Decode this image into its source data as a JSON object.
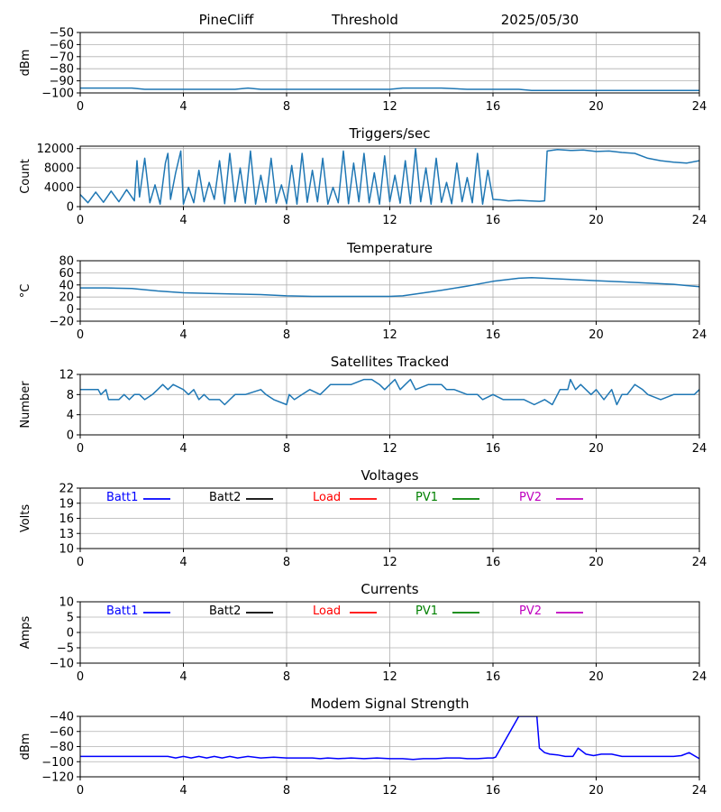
{
  "header": {
    "station": "PineCliff",
    "title": "Threshold",
    "date": "2025/05/30"
  },
  "colors": {
    "series_default": "#1f77b4",
    "batt1": "#0000ff",
    "batt2": "#000000",
    "load": "#ff0000",
    "pv1": "#008000",
    "pv2": "#bf00bf",
    "modem": "#0000ff",
    "grid": "#b0b0b0"
  },
  "chart_data": [
    {
      "id": "threshold",
      "type": "line",
      "title": "",
      "ylabel": "dBm",
      "xlim": [
        0,
        24
      ],
      "ylim": [
        -100,
        -50
      ],
      "xticks": [
        0,
        4,
        8,
        12,
        16,
        20,
        24
      ],
      "yticks": [
        -100,
        -90,
        -80,
        -70,
        -60,
        -50
      ],
      "ytick_labels": [
        "−100",
        "−90",
        "−80",
        "−70",
        "−60",
        "−50"
      ],
      "grid": true,
      "series": [
        {
          "color": "#1f77b4",
          "x": [
            0,
            1,
            2,
            2.5,
            3,
            4,
            5,
            6,
            6.5,
            7,
            8,
            9,
            10,
            11,
            12,
            12.5,
            13,
            14,
            15,
            16,
            17,
            17.5,
            18,
            19,
            20,
            21,
            22,
            23,
            24
          ],
          "y": [
            -96,
            -96,
            -96,
            -97,
            -97,
            -97,
            -97,
            -97,
            -96,
            -97,
            -97,
            -97,
            -97,
            -97,
            -97,
            -96,
            -96,
            -96,
            -97,
            -97,
            -97,
            -98,
            -98,
            -98,
            -98,
            -98,
            -98,
            -98,
            -98
          ]
        }
      ]
    },
    {
      "id": "triggers",
      "type": "line",
      "title": "Triggers/sec",
      "ylabel": "Count",
      "xlim": [
        0,
        24
      ],
      "ylim": [
        0,
        12500
      ],
      "xticks": [
        0,
        4,
        8,
        12,
        16,
        20,
        24
      ],
      "yticks": [
        0,
        4000,
        8000,
        12000
      ],
      "ytick_labels": [
        "0",
        "4000",
        "8000",
        "12000"
      ],
      "grid": true,
      "series": [
        {
          "color": "#1f77b4",
          "x": [
            0,
            0.3,
            0.6,
            0.9,
            1.2,
            1.5,
            1.8,
            2.1,
            2.2,
            2.3,
            2.5,
            2.7,
            2.9,
            3.1,
            3.3,
            3.4,
            3.5,
            3.7,
            3.9,
            4.0,
            4.2,
            4.4,
            4.6,
            4.8,
            5.0,
            5.2,
            5.4,
            5.6,
            5.8,
            6.0,
            6.2,
            6.4,
            6.6,
            6.8,
            7.0,
            7.2,
            7.4,
            7.6,
            7.8,
            8.0,
            8.2,
            8.4,
            8.6,
            8.8,
            9.0,
            9.2,
            9.4,
            9.6,
            9.8,
            10.0,
            10.2,
            10.4,
            10.6,
            10.8,
            11.0,
            11.2,
            11.4,
            11.6,
            11.8,
            12.0,
            12.2,
            12.4,
            12.6,
            12.8,
            13.0,
            13.2,
            13.4,
            13.6,
            13.8,
            14.0,
            14.2,
            14.4,
            14.6,
            14.8,
            15.0,
            15.2,
            15.4,
            15.6,
            15.8,
            16.0,
            16.3,
            16.6,
            17.0,
            17.4,
            17.8,
            18.0,
            18.1,
            18.5,
            19.0,
            19.5,
            20.0,
            20.5,
            21.0,
            21.5,
            22.0,
            22.5,
            23.0,
            23.5,
            24.0
          ],
          "y": [
            2500,
            800,
            3000,
            900,
            3200,
            1000,
            3500,
            1200,
            9500,
            2000,
            10000,
            800,
            4500,
            500,
            9000,
            11000,
            1500,
            7000,
            11500,
            500,
            4000,
            800,
            7500,
            1000,
            5000,
            1500,
            9500,
            600,
            11000,
            1000,
            8000,
            700,
            11500,
            500,
            6500,
            900,
            10000,
            700,
            4500,
            600,
            8500,
            500,
            11000,
            900,
            7500,
            1000,
            10000,
            500,
            4000,
            800,
            11500,
            600,
            9000,
            1000,
            11000,
            800,
            7000,
            500,
            10500,
            1000,
            6500,
            700,
            9500,
            600,
            12000,
            1000,
            8000,
            500,
            10000,
            900,
            5000,
            600,
            9000,
            1000,
            6000,
            800,
            11000,
            500,
            7500,
            1500,
            1400,
            1200,
            1300,
            1200,
            1100,
            1200,
            11500,
            11800,
            11600,
            11700,
            11400,
            11500,
            11200,
            11000,
            10000,
            9500,
            9200,
            9000,
            9500
          ]
        }
      ]
    },
    {
      "id": "temperature",
      "type": "line",
      "title": "Temperature",
      "ylabel": "°C",
      "xlim": [
        0,
        24
      ],
      "ylim": [
        -20,
        80
      ],
      "xticks": [
        0,
        4,
        8,
        12,
        16,
        20,
        24
      ],
      "yticks": [
        -20,
        0,
        20,
        40,
        60,
        80
      ],
      "ytick_labels": [
        "−20",
        "0",
        "20",
        "40",
        "60",
        "80"
      ],
      "grid": true,
      "series": [
        {
          "color": "#1f77b4",
          "x": [
            0,
            1,
            2,
            3,
            4,
            5,
            6,
            7,
            8,
            9,
            10,
            11,
            12,
            12.5,
            13,
            14,
            15,
            16,
            17,
            17.5,
            18,
            19,
            20,
            21,
            22,
            23,
            24
          ],
          "y": [
            35,
            35,
            34,
            30,
            27,
            26,
            25,
            24,
            22,
            21,
            21,
            21,
            21,
            22,
            25,
            31,
            38,
            46,
            51,
            52,
            51,
            49,
            47,
            45,
            43,
            41,
            37
          ]
        }
      ]
    },
    {
      "id": "satellites",
      "type": "line",
      "title": "Satellites Tracked",
      "ylabel": "Number",
      "xlim": [
        0,
        24
      ],
      "ylim": [
        0,
        12
      ],
      "xticks": [
        0,
        4,
        8,
        12,
        16,
        20,
        24
      ],
      "yticks": [
        0,
        4,
        8,
        12
      ],
      "ytick_labels": [
        "0",
        "4",
        "8",
        "12"
      ],
      "grid": true,
      "series": [
        {
          "color": "#1f77b4",
          "x": [
            0,
            0.7,
            0.8,
            1.0,
            1.1,
            1.5,
            1.7,
            1.9,
            2.1,
            2.3,
            2.5,
            2.8,
            3.0,
            3.2,
            3.4,
            3.6,
            4.0,
            4.2,
            4.4,
            4.6,
            4.8,
            5.0,
            5.4,
            5.6,
            5.8,
            6.0,
            6.2,
            6.4,
            7.0,
            7.2,
            7.5,
            8.0,
            8.1,
            8.3,
            8.6,
            8.9,
            9.3,
            9.5,
            9.7,
            9.9,
            10.2,
            10.5,
            11.0,
            11.3,
            11.6,
            11.8,
            12.0,
            12.2,
            12.4,
            12.6,
            12.8,
            13.0,
            13.5,
            14.0,
            14.2,
            14.5,
            15.0,
            15.4,
            15.6,
            16.0,
            16.4,
            16.8,
            17.2,
            17.6,
            18.0,
            18.3,
            18.6,
            18.9,
            19.0,
            19.2,
            19.4,
            19.6,
            19.8,
            20.0,
            20.3,
            20.6,
            20.8,
            21.0,
            21.2,
            21.5,
            21.8,
            22.0,
            22.5,
            23.0,
            23.5,
            23.8,
            24.0
          ],
          "y": [
            9,
            9,
            8,
            9,
            7,
            7,
            8,
            7,
            8,
            8,
            7,
            8,
            9,
            10,
            9,
            10,
            9,
            8,
            9,
            7,
            8,
            7,
            7,
            6,
            7,
            8,
            8,
            8,
            9,
            8,
            7,
            6,
            8,
            7,
            8,
            9,
            8,
            9,
            10,
            10,
            10,
            10,
            11,
            11,
            10,
            9,
            10,
            11,
            9,
            10,
            11,
            9,
            10,
            10,
            9,
            9,
            8,
            8,
            7,
            8,
            7,
            7,
            7,
            6,
            7,
            6,
            9,
            9,
            11,
            9,
            10,
            9,
            8,
            9,
            7,
            9,
            6,
            8,
            8,
            10,
            9,
            8,
            7,
            8,
            8,
            8,
            9
          ]
        }
      ]
    },
    {
      "id": "voltages",
      "type": "line",
      "title": "Voltages",
      "ylabel": "Volts",
      "xlim": [
        0,
        24
      ],
      "ylim": [
        10,
        22
      ],
      "xticks": [
        0,
        4,
        8,
        12,
        16,
        20,
        24
      ],
      "yticks": [
        10,
        13,
        16,
        19,
        22
      ],
      "ytick_labels": [
        "10",
        "13",
        "16",
        "19",
        "22"
      ],
      "grid": true,
      "legend": [
        {
          "name": "Batt1",
          "color": "#0000ff"
        },
        {
          "name": "Batt2",
          "color": "#000000"
        },
        {
          "name": "Load",
          "color": "#ff0000"
        },
        {
          "name": "PV1",
          "color": "#008000"
        },
        {
          "name": "PV2",
          "color": "#bf00bf"
        }
      ],
      "series": []
    },
    {
      "id": "currents",
      "type": "line",
      "title": "Currents",
      "ylabel": "Amps",
      "xlim": [
        0,
        24
      ],
      "ylim": [
        -10,
        10
      ],
      "xticks": [
        0,
        4,
        8,
        12,
        16,
        20,
        24
      ],
      "yticks": [
        -10,
        -5,
        0,
        5,
        10
      ],
      "ytick_labels": [
        "−10",
        "−5",
        "0",
        "5",
        "10"
      ],
      "grid": true,
      "legend": [
        {
          "name": "Batt1",
          "color": "#0000ff"
        },
        {
          "name": "Batt2",
          "color": "#000000"
        },
        {
          "name": "Load",
          "color": "#ff0000"
        },
        {
          "name": "PV1",
          "color": "#008000"
        },
        {
          "name": "PV2",
          "color": "#bf00bf"
        }
      ],
      "series": []
    },
    {
      "id": "modem",
      "type": "line",
      "title": "Modem Signal Strength",
      "ylabel": "dBm",
      "xlim": [
        0,
        24
      ],
      "ylim": [
        -120,
        -40
      ],
      "xticks": [
        0,
        4,
        8,
        12,
        16,
        20,
        24
      ],
      "yticks": [
        -120,
        -100,
        -80,
        -60,
        -40
      ],
      "ytick_labels": [
        "−120",
        "−100",
        "−80",
        "−60",
        "−40"
      ],
      "grid": true,
      "series": [
        {
          "color": "#0000ff",
          "x": [
            0,
            1,
            2,
            3,
            3.4,
            3.7,
            4.0,
            4.3,
            4.6,
            4.9,
            5.2,
            5.5,
            5.8,
            6.1,
            6.5,
            7.0,
            7.5,
            8.0,
            8.5,
            9.0,
            9.3,
            9.6,
            10.0,
            10.5,
            11.0,
            11.5,
            12.0,
            12.5,
            12.9,
            13.3,
            13.8,
            14.2,
            14.7,
            15.0,
            15.4,
            15.8,
            16.0,
            16.1,
            17.0,
            17.1,
            17.6,
            17.7,
            17.8,
            18.0,
            18.2,
            18.5,
            18.8,
            19.1,
            19.3,
            19.6,
            19.9,
            20.2,
            20.6,
            21.0,
            21.5,
            22.0,
            22.5,
            23.0,
            23.3,
            23.6,
            24.0
          ],
          "y": [
            -93,
            -93,
            -93,
            -93,
            -93,
            -95,
            -93,
            -95,
            -93,
            -95,
            -93,
            -95,
            -93,
            -95,
            -93,
            -95,
            -94,
            -95,
            -95,
            -95,
            -96,
            -95,
            -96,
            -95,
            -96,
            -95,
            -96,
            -96,
            -97,
            -96,
            -96,
            -95,
            -95,
            -96,
            -96,
            -95,
            -95,
            -94,
            -40,
            -40,
            -40,
            -40,
            -82,
            -88,
            -90,
            -91,
            -93,
            -93,
            -82,
            -90,
            -92,
            -90,
            -90,
            -93,
            -93,
            -93,
            -93,
            -93,
            -92,
            -88,
            -96
          ]
        }
      ]
    }
  ]
}
